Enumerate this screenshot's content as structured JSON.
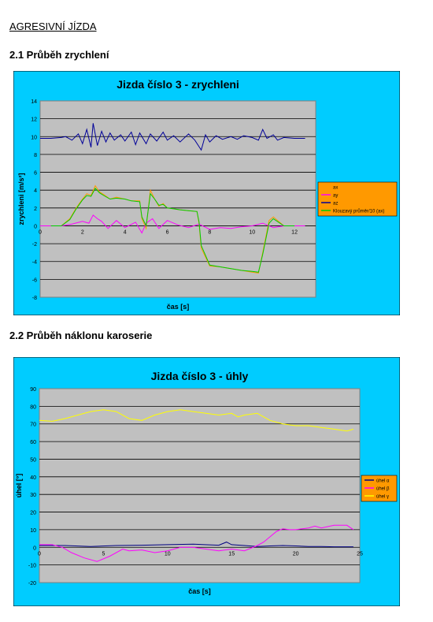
{
  "document": {
    "heading": "AGRESIVNÍ JÍZDA",
    "section1": "2.1 Průběh zrychlení",
    "section2": "2.2 Průběh náklonu karoserie"
  },
  "colors": {
    "frame": "#00ccff",
    "plot_area": "#c0c0c0",
    "legend_bg": "#ff9900"
  },
  "chart_data": [
    {
      "type": "line",
      "title": "Jizda číslo 3 - zrychleni",
      "xlabel": "čas [s]",
      "ylabel": "zrychleni [m/s²]",
      "xlim": [
        0,
        13
      ],
      "ylim": [
        -8,
        14
      ],
      "x_ticks": [
        0,
        2,
        4,
        6,
        8,
        10,
        12
      ],
      "y_ticks": [
        -8,
        -6,
        -4,
        -2,
        0,
        2,
        4,
        6,
        8,
        10,
        12,
        14
      ],
      "grid": true,
      "legend_position": "right",
      "series": [
        {
          "name": "ax",
          "color": "#ff9900",
          "x": [
            0.5,
            1.0,
            1.4,
            1.7,
            2.0,
            2.2,
            2.4,
            2.6,
            2.8,
            3.0,
            3.3,
            3.6,
            4.0,
            4.3,
            4.7,
            4.8,
            5.0,
            5.2,
            5.4,
            5.6,
            5.8,
            6.0,
            6.3,
            6.6,
            7.0,
            7.4,
            7.5,
            7.6,
            8.0,
            8.5,
            9.0,
            9.5,
            10.0,
            10.3,
            10.5,
            10.8,
            11.0,
            11.5,
            12.0
          ],
          "y": [
            0,
            0,
            0.8,
            2.0,
            3.0,
            3.6,
            3.4,
            4.5,
            3.8,
            3.5,
            3.0,
            3.2,
            3.0,
            2.8,
            2.8,
            0.8,
            -0.3,
            4.0,
            3.0,
            2.2,
            2.5,
            2.0,
            1.9,
            1.8,
            1.7,
            1.6,
            0.2,
            -2.5,
            -4.5,
            -4.6,
            -4.8,
            -5.0,
            -5.2,
            -5.3,
            -3.0,
            0.6,
            1.0,
            0,
            0
          ]
        },
        {
          "name": "ay",
          "color": "#ff00ff",
          "x": [
            0.0,
            0.5,
            1.0,
            1.5,
            2.0,
            2.3,
            2.5,
            2.7,
            2.9,
            3.2,
            3.6,
            4.0,
            4.5,
            4.8,
            5.0,
            5.3,
            5.6,
            6.0,
            6.5,
            7.0,
            7.5,
            8.0,
            8.5,
            9.0,
            9.5,
            10.0,
            10.5,
            11.0,
            11.5,
            12.0,
            12.5
          ],
          "y": [
            0,
            0,
            0,
            0.2,
            0.5,
            0.3,
            1.2,
            0.8,
            0.5,
            -0.3,
            0.6,
            -0.2,
            0.4,
            -0.8,
            0.3,
            0.8,
            -0.3,
            0.6,
            0.1,
            -0.2,
            0.2,
            -0.4,
            -0.2,
            -0.3,
            -0.1,
            0,
            0.3,
            -0.2,
            0,
            0,
            0
          ]
        },
        {
          "name": "az",
          "color": "#000099",
          "x": [
            0.0,
            0.5,
            1.0,
            1.2,
            1.5,
            1.8,
            2.0,
            2.2,
            2.4,
            2.5,
            2.7,
            2.9,
            3.1,
            3.3,
            3.5,
            3.8,
            4.0,
            4.3,
            4.5,
            4.7,
            5.0,
            5.2,
            5.5,
            5.8,
            6.0,
            6.3,
            6.6,
            7.0,
            7.3,
            7.6,
            7.8,
            8.0,
            8.3,
            8.6,
            9.0,
            9.3,
            9.6,
            10.0,
            10.3,
            10.5,
            10.7,
            11.0,
            11.2,
            11.5,
            12.0,
            12.5
          ],
          "y": [
            9.8,
            9.8,
            9.9,
            10.0,
            9.6,
            10.3,
            9.2,
            10.8,
            8.8,
            11.5,
            9.0,
            10.6,
            9.4,
            10.4,
            9.6,
            10.2,
            9.5,
            10.5,
            9.1,
            10.4,
            9.2,
            10.3,
            9.5,
            10.5,
            9.6,
            10.1,
            9.4,
            10.3,
            9.6,
            8.5,
            10.2,
            9.4,
            10.1,
            9.7,
            10.0,
            9.7,
            10.1,
            9.9,
            9.6,
            10.8,
            9.8,
            10.2,
            9.6,
            9.9,
            9.8,
            9.8
          ]
        },
        {
          "name": "Klouzavý průměr/10 (ax)",
          "color": "#00cc00",
          "x": [
            0.5,
            1.0,
            1.4,
            1.7,
            2.0,
            2.2,
            2.4,
            2.6,
            2.8,
            3.0,
            3.3,
            3.6,
            4.0,
            4.3,
            4.7,
            4.8,
            5.0,
            5.2,
            5.4,
            5.6,
            5.8,
            6.0,
            6.3,
            6.6,
            7.0,
            7.4,
            7.5,
            7.6,
            8.0,
            8.5,
            9.0,
            9.5,
            10.0,
            10.3,
            10.5,
            10.8,
            11.0,
            11.5,
            12.0
          ],
          "y": [
            0,
            0,
            0.7,
            1.9,
            2.9,
            3.4,
            3.3,
            4.2,
            3.7,
            3.4,
            3.0,
            3.1,
            3.0,
            2.8,
            2.7,
            1.0,
            0,
            3.6,
            3.0,
            2.3,
            2.4,
            2.0,
            1.9,
            1.8,
            1.7,
            1.6,
            0.4,
            -2.2,
            -4.4,
            -4.6,
            -4.8,
            -5.0,
            -5.1,
            -5.2,
            -3.2,
            0.3,
            0.8,
            0,
            0
          ]
        }
      ]
    },
    {
      "type": "line",
      "title": "Jizda číslo 3 - úhly",
      "xlabel": "čas [s]",
      "ylabel": "úhel [°]",
      "xlim": [
        0,
        25
      ],
      "ylim": [
        -20,
        90
      ],
      "x_ticks": [
        0,
        5,
        10,
        15,
        20,
        25
      ],
      "y_ticks": [
        -20,
        -10,
        0,
        10,
        20,
        30,
        40,
        50,
        60,
        70,
        80,
        90
      ],
      "grid": true,
      "legend_position": "right",
      "series": [
        {
          "name": "úhel α",
          "color": "#000080",
          "x": [
            0,
            2,
            4,
            6,
            8,
            10,
            12,
            14,
            14.6,
            15,
            16,
            17,
            18,
            19,
            20,
            21,
            22,
            23,
            24,
            24.5
          ],
          "y": [
            1,
            1,
            0.5,
            1,
            1.2,
            1.5,
            1.8,
            1.2,
            3,
            1.5,
            1,
            0.5,
            0.8,
            1,
            0.8,
            0.5,
            0.5,
            0.3,
            0.3,
            0.3
          ]
        },
        {
          "name": "úhel β",
          "color": "#ff00ff",
          "x": [
            0,
            1,
            1.8,
            2.5,
            3.5,
            4.5,
            5.5,
            6.5,
            7,
            8,
            9,
            10,
            11,
            12,
            13,
            14,
            15,
            16,
            17,
            17.5,
            18,
            18.5,
            19,
            19.5,
            20,
            21,
            21.5,
            22,
            23,
            24,
            24.5
          ],
          "y": [
            1.5,
            1.5,
            0,
            -3,
            -6,
            -8,
            -5,
            -1,
            -2,
            -1.5,
            -3,
            -2,
            0,
            0,
            -1,
            -2,
            -1,
            -2,
            1,
            3,
            6,
            9,
            10.5,
            10,
            10,
            11,
            12,
            11,
            12.5,
            12.5,
            10
          ]
        },
        {
          "name": "úhel γ",
          "color": "#ffff00",
          "x": [
            0,
            1,
            2,
            3,
            4,
            5,
            6,
            7,
            8,
            9,
            10,
            11,
            12,
            13,
            14,
            15,
            15.5,
            16,
            17,
            18,
            19,
            20,
            21,
            22,
            23,
            24,
            24.5
          ],
          "y": [
            72,
            71.5,
            73,
            75,
            77,
            78,
            77,
            73,
            72,
            75,
            77,
            78,
            77,
            76,
            75,
            76,
            74,
            75,
            76,
            72,
            70,
            69,
            69,
            68,
            67,
            66,
            67
          ]
        }
      ]
    }
  ]
}
